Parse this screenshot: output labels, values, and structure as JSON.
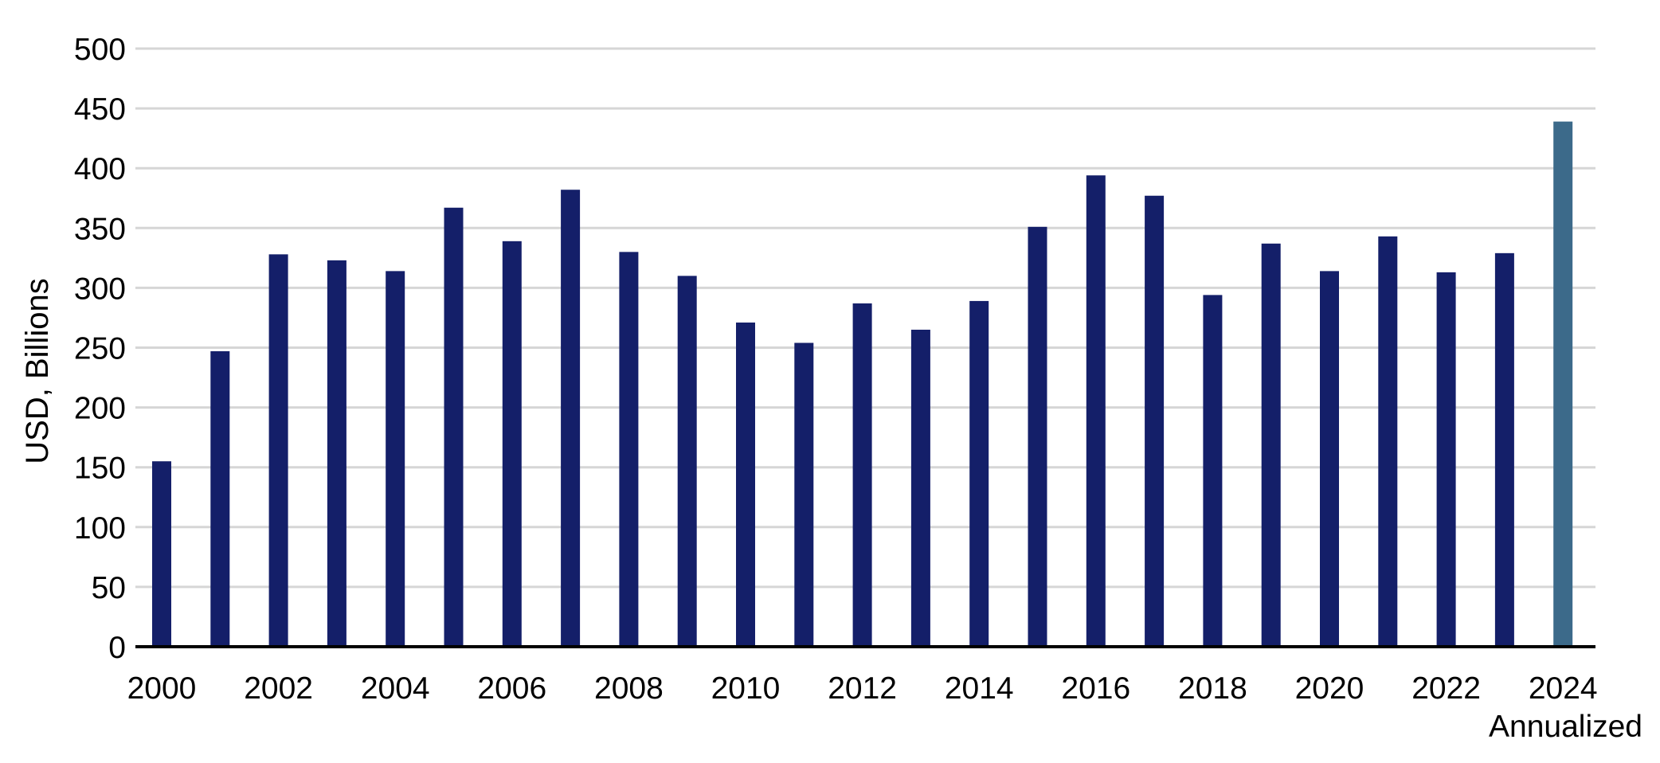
{
  "chart_data": {
    "type": "bar",
    "ylabel": "USD, Billions",
    "ylim": [
      0,
      500
    ],
    "yticks": [
      "0",
      "50",
      "100",
      "150",
      "200",
      "250",
      "300",
      "350",
      "400",
      "450",
      "500"
    ],
    "xtick_labels": [
      "2000",
      "2002",
      "2004",
      "2006",
      "2008",
      "2010",
      "2012",
      "2014",
      "2016",
      "2018",
      "2020",
      "2022",
      "2024"
    ],
    "xtick_sublabel": "Annualized",
    "grid": true,
    "categories": [
      "2000",
      "2001",
      "2002",
      "2003",
      "2004",
      "2005",
      "2006",
      "2007",
      "2008",
      "2009",
      "2010",
      "2011",
      "2012",
      "2013",
      "2014",
      "2015",
      "2016",
      "2017",
      "2018",
      "2019",
      "2020",
      "2021",
      "2022",
      "2023",
      "2024"
    ],
    "values": [
      155,
      247,
      328,
      323,
      314,
      367,
      339,
      382,
      330,
      310,
      271,
      254,
      287,
      265,
      289,
      351,
      394,
      377,
      294,
      337,
      314,
      343,
      313,
      329,
      439
    ],
    "bar_color": "#141f69",
    "highlight_color": "#3c6a8a",
    "highlight_category": "2024"
  }
}
